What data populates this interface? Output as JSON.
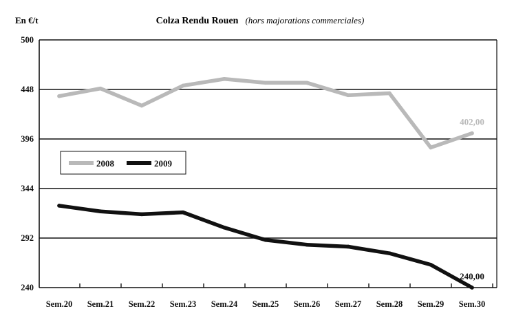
{
  "chart_data": {
    "type": "line",
    "title": "Colza Rendu Rouen",
    "subtitle": "(hors majorations commerciales)",
    "ylabel": "En €/t",
    "xlabel": "",
    "categories": [
      "Sem.20",
      "Sem.21",
      "Sem.22",
      "Sem.23",
      "Sem.24",
      "Sem.25",
      "Sem.26",
      "Sem.27",
      "Sem.28",
      "Sem.29",
      "Sem.30"
    ],
    "ylim": [
      240,
      500
    ],
    "yticks": [
      "500",
      "448",
      "396",
      "344",
      "292",
      "240"
    ],
    "grid": "horizontal",
    "legend_position": "middle-left",
    "series": [
      {
        "name": "2008",
        "color": "#b9b9b9",
        "values": [
          441,
          449,
          431,
          452,
          459,
          455,
          455,
          442,
          444,
          387,
          402
        ],
        "end_label": "402,00"
      },
      {
        "name": "2009",
        "color": "#111111",
        "values": [
          326,
          320,
          317,
          319,
          303,
          290,
          285,
          283,
          276,
          264,
          240
        ],
        "end_label": "240,00"
      }
    ]
  }
}
